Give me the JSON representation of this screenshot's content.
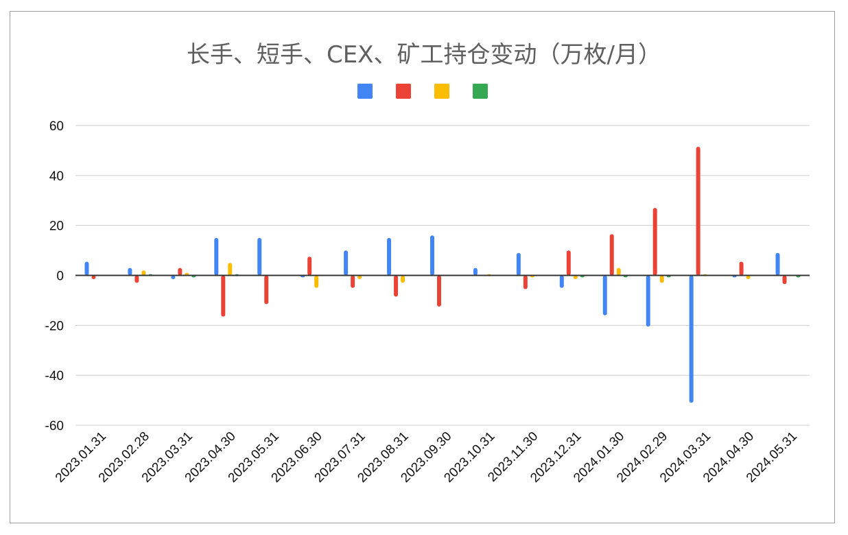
{
  "chart_data": {
    "type": "bar",
    "title": "长手、短手、CEX、矿工持仓变动（万枚/月）",
    "xlabel": "",
    "ylabel": "",
    "ylim": [
      -60,
      60
    ],
    "yticks": [
      60,
      40,
      20,
      0,
      -20,
      -40,
      -60
    ],
    "grid": true,
    "legend": "top",
    "categories": [
      "2023.01.31",
      "2023.02.28",
      "2023.03.31",
      "2023.04.30",
      "2023.05.31",
      "2023.06.30",
      "2023.07.31",
      "2023.08.31",
      "2023.09.30",
      "2023.10.31",
      "2023.11.30",
      "2023.12.31",
      "2024.01.30",
      "2024.02.29",
      "2024.03.31",
      "2024.04.30",
      "2024.05.31"
    ],
    "series": [
      {
        "color": "#4285f4",
        "values": [
          5.5,
          3,
          -1.5,
          15,
          15,
          -0.5,
          10,
          15,
          16,
          3,
          9,
          -5,
          -16,
          -20.5,
          -51,
          -0.5,
          9
        ]
      },
      {
        "color": "#ea4335",
        "values": [
          -1.5,
          -3,
          3,
          -16.5,
          -11.5,
          7.5,
          -5,
          -8.5,
          -12.5,
          0,
          -5.5,
          10,
          16.5,
          27,
          51.5,
          5.5,
          -3.5
        ]
      },
      {
        "color": "#fbbc04",
        "values": [
          0,
          2,
          1,
          5,
          0,
          -5,
          -1.5,
          -3,
          0,
          0.5,
          -0.5,
          -1.5,
          3,
          -3,
          0.5,
          -1.5,
          0
        ]
      },
      {
        "color": "#34a853",
        "values": [
          0,
          0.5,
          -0.5,
          0.5,
          0,
          0,
          0,
          0,
          0,
          0,
          0,
          -0.5,
          -0.5,
          -0.5,
          0,
          0,
          -0.5
        ]
      }
    ]
  }
}
